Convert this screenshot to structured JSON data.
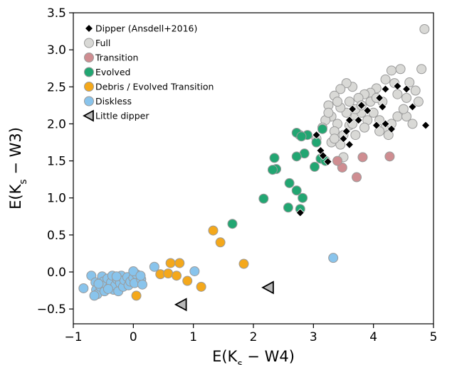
{
  "chart_data": {
    "type": "scatter",
    "xlabel": "E(K",
    "xlabel_sub": "s",
    "xlabel_tail": " − W4)",
    "ylabel": "E(K",
    "ylabel_sub": "s",
    "ylabel_tail": " − W3)",
    "xlim": [
      -1,
      5
    ],
    "ylim": [
      -0.7,
      3.5
    ],
    "xticks": [
      -1,
      0,
      1,
      2,
      3,
      4,
      5
    ],
    "yticks": [
      -0.5,
      0.0,
      0.5,
      1.0,
      1.5,
      2.0,
      2.5,
      3.0,
      3.5
    ],
    "xtick_labels": [
      "−1",
      "0",
      "1",
      "2",
      "3",
      "4",
      "5"
    ],
    "ytick_labels": [
      "−0.5",
      "0.0",
      "0.5",
      "1.0",
      "1.5",
      "2.0",
      "2.5",
      "3.0",
      "3.5"
    ],
    "grid": false,
    "legend_position": "top-left",
    "series": [
      {
        "name": "Full",
        "marker": "circle",
        "color": "#d9d9d6",
        "edge": "#9a9a9a",
        "points": [
          [
            4.85,
            3.28
          ],
          [
            4.3,
            2.72
          ],
          [
            4.2,
            2.6
          ],
          [
            4.35,
            2.55
          ],
          [
            4.45,
            2.74
          ],
          [
            4.6,
            2.56
          ],
          [
            4.8,
            2.74
          ],
          [
            4.7,
            2.45
          ],
          [
            4.55,
            2.35
          ],
          [
            4.4,
            2.4
          ],
          [
            4.15,
            2.3
          ],
          [
            4.05,
            2.48
          ],
          [
            3.95,
            2.42
          ],
          [
            3.85,
            2.4
          ],
          [
            3.75,
            2.35
          ],
          [
            3.65,
            2.5
          ],
          [
            3.55,
            2.55
          ],
          [
            3.45,
            2.47
          ],
          [
            3.35,
            2.38
          ],
          [
            3.25,
            2.25
          ],
          [
            3.3,
            2.1
          ],
          [
            3.4,
            2.0
          ],
          [
            3.35,
            1.9
          ],
          [
            3.3,
            1.75
          ],
          [
            3.45,
            1.72
          ],
          [
            3.5,
            1.85
          ],
          [
            3.6,
            1.98
          ],
          [
            3.7,
            2.1
          ],
          [
            3.8,
            2.15
          ],
          [
            3.9,
            2.05
          ],
          [
            4.0,
            2.15
          ],
          [
            4.1,
            2.05
          ],
          [
            4.2,
            1.95
          ],
          [
            4.3,
            2.0
          ],
          [
            4.4,
            2.1
          ],
          [
            4.55,
            2.1
          ],
          [
            4.65,
            2.0
          ],
          [
            4.75,
            2.3
          ],
          [
            3.2,
            2.05
          ],
          [
            3.15,
            1.95
          ],
          [
            3.05,
            1.8
          ],
          [
            3.6,
            2.3
          ],
          [
            3.7,
            2.2
          ],
          [
            3.8,
            2.25
          ],
          [
            3.55,
            2.15
          ],
          [
            3.45,
            2.22
          ],
          [
            3.25,
            2.15
          ],
          [
            3.4,
            2.3
          ],
          [
            3.95,
            2.3
          ],
          [
            4.05,
            2.35
          ],
          [
            4.5,
            2.2
          ],
          [
            4.25,
            1.85
          ],
          [
            3.85,
            1.95
          ],
          [
            3.5,
            1.55
          ],
          [
            2.77,
            1.85
          ],
          [
            3.7,
            1.85
          ],
          [
            4.1,
            1.9
          ],
          [
            3.35,
            1.8
          ],
          [
            3.65,
            2.0
          ]
        ]
      },
      {
        "name": "Transition",
        "marker": "circle",
        "color": "#cf8d91",
        "edge": "#9a9a9a",
        "points": [
          [
            4.27,
            1.56
          ],
          [
            3.82,
            1.55
          ],
          [
            3.72,
            1.28
          ],
          [
            3.48,
            1.41
          ],
          [
            3.4,
            1.5
          ]
        ]
      },
      {
        "name": "Evolved",
        "marker": "circle",
        "color": "#22a672",
        "edge": "#9a9a9a",
        "points": [
          [
            3.15,
            1.93
          ],
          [
            3.05,
            1.75
          ],
          [
            3.12,
            1.53
          ],
          [
            3.2,
            1.5
          ],
          [
            3.02,
            1.42
          ],
          [
            2.9,
            1.85
          ],
          [
            2.72,
            1.88
          ],
          [
            2.8,
            1.83
          ],
          [
            2.85,
            1.6
          ],
          [
            2.72,
            1.56
          ],
          [
            2.35,
            1.54
          ],
          [
            2.38,
            1.39
          ],
          [
            2.32,
            1.38
          ],
          [
            2.6,
            1.2
          ],
          [
            2.72,
            1.1
          ],
          [
            2.82,
            1.0
          ],
          [
            2.17,
            0.99
          ],
          [
            2.58,
            0.87
          ],
          [
            2.78,
            0.85
          ],
          [
            1.65,
            0.65
          ]
        ]
      },
      {
        "name": "Debris / Evolved Transition",
        "marker": "circle",
        "color": "#f4a81b",
        "edge": "#9a9a9a",
        "points": [
          [
            1.33,
            0.56
          ],
          [
            1.45,
            0.4
          ],
          [
            1.84,
            0.11
          ],
          [
            0.62,
            0.12
          ],
          [
            0.77,
            0.12
          ],
          [
            0.45,
            -0.03
          ],
          [
            0.58,
            -0.02
          ],
          [
            0.72,
            -0.05
          ],
          [
            0.9,
            -0.12
          ],
          [
            1.13,
            -0.2
          ],
          [
            0.05,
            -0.32
          ]
        ]
      },
      {
        "name": "Diskless",
        "marker": "circle",
        "color": "#89c4ec",
        "edge": "#9a9a9a",
        "points": [
          [
            -0.83,
            -0.22
          ],
          [
            -0.7,
            -0.05
          ],
          [
            -0.63,
            -0.14
          ],
          [
            -0.62,
            -0.24
          ],
          [
            -0.6,
            -0.3
          ],
          [
            -0.55,
            -0.2
          ],
          [
            -0.52,
            -0.06
          ],
          [
            -0.5,
            -0.13
          ],
          [
            -0.48,
            -0.26
          ],
          [
            -0.45,
            -0.17
          ],
          [
            -0.43,
            -0.09
          ],
          [
            -0.4,
            -0.21
          ],
          [
            -0.37,
            -0.14
          ],
          [
            -0.35,
            -0.05
          ],
          [
            -0.33,
            -0.24
          ],
          [
            -0.3,
            -0.18
          ],
          [
            -0.27,
            -0.1
          ],
          [
            -0.25,
            -0.26
          ],
          [
            -0.22,
            -0.15
          ],
          [
            -0.2,
            -0.05
          ],
          [
            -0.17,
            -0.2
          ],
          [
            -0.15,
            -0.11
          ],
          [
            -0.1,
            -0.07
          ],
          [
            -0.08,
            -0.18
          ],
          [
            -0.05,
            -0.13
          ],
          [
            0.0,
            -0.08
          ],
          [
            0.02,
            -0.15
          ],
          [
            0.05,
            -0.03
          ],
          [
            0.0,
            0.01
          ],
          [
            0.13,
            -0.1
          ],
          [
            0.15,
            -0.17
          ],
          [
            0.12,
            -0.05
          ],
          [
            0.35,
            0.07
          ],
          [
            -0.58,
            -0.16
          ],
          [
            -0.42,
            -0.23
          ],
          [
            -0.28,
            -0.06
          ],
          [
            1.02,
            0.01
          ],
          [
            3.33,
            0.19
          ],
          [
            -0.65,
            -0.32
          ]
        ]
      },
      {
        "name": "Dipper (Ansdell+2016)",
        "marker": "diamond",
        "color": "#000000",
        "edge": "#ffffff",
        "points": [
          [
            4.87,
            1.98
          ],
          [
            4.65,
            2.23
          ],
          [
            4.55,
            2.47
          ],
          [
            4.4,
            2.51
          ],
          [
            4.2,
            2.47
          ],
          [
            4.1,
            2.35
          ],
          [
            4.15,
            2.23
          ],
          [
            4.05,
            1.98
          ],
          [
            4.2,
            2.0
          ],
          [
            4.3,
            1.93
          ],
          [
            3.9,
            2.18
          ],
          [
            3.8,
            2.25
          ],
          [
            3.75,
            2.05
          ],
          [
            3.65,
            2.2
          ],
          [
            3.6,
            2.05
          ],
          [
            3.55,
            1.9
          ],
          [
            3.5,
            1.8
          ],
          [
            3.6,
            1.72
          ],
          [
            3.05,
            1.85
          ],
          [
            3.12,
            1.64
          ],
          [
            3.16,
            1.57
          ],
          [
            3.24,
            1.49
          ],
          [
            2.78,
            0.8
          ]
        ]
      },
      {
        "name": "Little dipper",
        "marker": "triangle-left",
        "color": "#b9b9b9",
        "edge": "#000000",
        "points": [
          [
            0.8,
            -0.44
          ],
          [
            2.25,
            -0.21
          ]
        ]
      }
    ]
  }
}
